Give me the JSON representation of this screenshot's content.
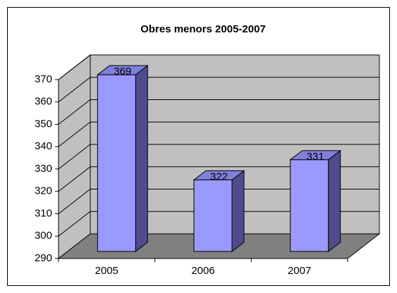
{
  "chart_data": {
    "type": "bar3d",
    "title": "Obres menors 2005-2007",
    "categories": [
      "2005",
      "2006",
      "2007"
    ],
    "values": [
      369,
      322,
      331
    ],
    "color": "#9999ff",
    "side_color": "#4d4d8c",
    "top_color": "#8080dd",
    "wall_color": "#c0c0c0",
    "floor_color": "#808080",
    "ylim": [
      290,
      370
    ],
    "yticks": [
      290,
      300,
      310,
      320,
      330,
      340,
      350,
      360,
      370
    ],
    "grid": true
  }
}
